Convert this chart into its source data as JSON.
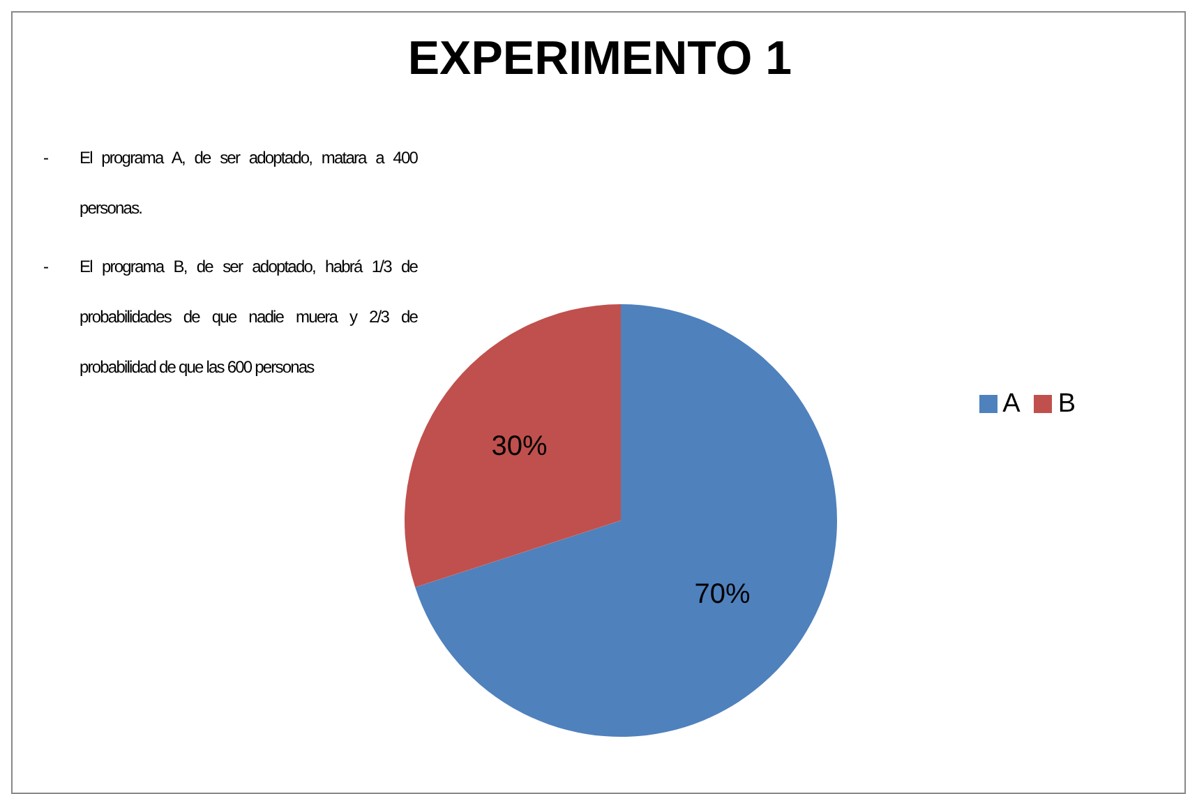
{
  "chart_data": {
    "type": "pie",
    "title": "EXPERIMENTO 1",
    "categories": [
      "A",
      "B"
    ],
    "values": [
      70,
      30
    ],
    "colors": [
      "#4f81bd",
      "#c0504d"
    ],
    "value_labels": [
      "70%",
      "30%"
    ],
    "legend": "right",
    "annotations": [
      "- El programa A, de ser adoptado, matara a 400 personas.",
      "- El programa B, de ser adoptado, habrá 1/3 de probabilidades de que nadie muera y 2/3 de probabilidad de que las 600 personas"
    ]
  }
}
